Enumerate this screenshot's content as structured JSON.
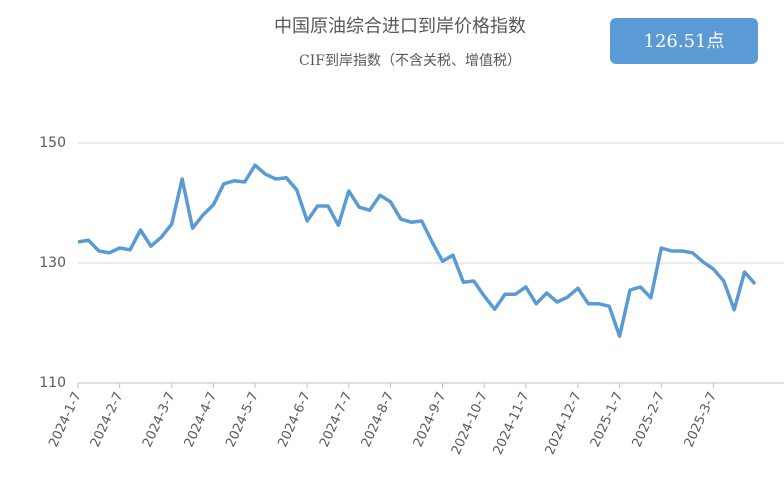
{
  "chart_data": {
    "type": "line",
    "title": "中国原油综合进口到岸价格指数",
    "subtitle": "CIF到岸指数（不含关税、增值税）",
    "badge": "126.51点",
    "categories": [
      "2024-1-7",
      null,
      null,
      null,
      "2024-2-7",
      null,
      null,
      null,
      null,
      "2024-3-7",
      null,
      null,
      null,
      "2024-4-7",
      null,
      null,
      null,
      "2024-5-7",
      null,
      null,
      null,
      null,
      "2024-6-7",
      null,
      null,
      null,
      "2024-7-7",
      null,
      null,
      null,
      "2024-8-7",
      null,
      null,
      null,
      null,
      "2024-9-7",
      null,
      null,
      null,
      "2024-10-7",
      null,
      null,
      null,
      "2024-11-7",
      null,
      null,
      null,
      null,
      "2024-12-7",
      null,
      null,
      null,
      "2025-1-7",
      null,
      null,
      null,
      "2025-2-7",
      null,
      null,
      null,
      null,
      "2025-3-7",
      null,
      null,
      null,
      null
    ],
    "series": [
      {
        "name": "CIF到岸指数",
        "color": "#5b9bd5",
        "values": [
          133.5,
          133.8,
          132,
          131.7,
          132.5,
          132.2,
          135.5,
          132.8,
          134.3,
          136.5,
          144,
          135.8,
          138,
          139.7,
          143.2,
          143.7,
          143.5,
          146.3,
          144.8,
          144,
          144.2,
          142.2,
          137,
          139.5,
          139.5,
          136.3,
          142,
          139.3,
          138.8,
          141.3,
          140.2,
          137.3,
          136.8,
          137,
          133.5,
          130.3,
          131.3,
          126.8,
          127,
          124.5,
          122.3,
          124.8,
          124.8,
          126,
          123.2,
          125,
          123.5,
          124.3,
          125.8,
          123.2,
          123.2,
          122.8,
          117.8,
          125.5,
          126,
          124.2,
          132.5,
          132,
          132,
          131.7,
          130.2,
          129,
          127,
          122.2,
          128.5,
          126.51
        ]
      }
    ],
    "ylim": [
      110,
      150
    ],
    "yticks": [
      110,
      130,
      150
    ],
    "grid": true
  }
}
